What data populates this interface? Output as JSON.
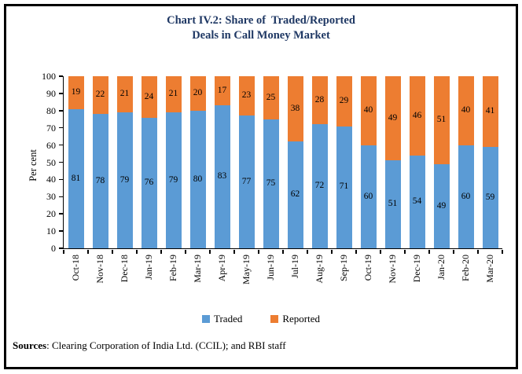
{
  "title": {
    "line1": "Chart IV.2: Share of  Traded/Reported",
    "line2": "Deals in Call Money Market"
  },
  "chart_data": {
    "type": "bar",
    "stacked": true,
    "title": "Chart IV.2: Share of Traded/Reported Deals in Call Money Market",
    "categories": [
      "Oct-18",
      "Nov-18",
      "Dec-18",
      "Jan-19",
      "Feb-19",
      "Mar-19",
      "Apr-19",
      "May-19",
      "Jun-19",
      "Jul-19",
      "Aug-19",
      "Sep-19",
      "Oct-19",
      "Nov-19",
      "Dec-19",
      "Jan-20",
      "Feb-20",
      "Mar-20"
    ],
    "series": [
      {
        "name": "Traded",
        "color": "#5B9BD5",
        "values": [
          81,
          78,
          79,
          76,
          79,
          80,
          83,
          77,
          75,
          62,
          72,
          71,
          60,
          51,
          54,
          49,
          60,
          59
        ]
      },
      {
        "name": "Reported",
        "color": "#ED7D31",
        "values": [
          19,
          22,
          21,
          24,
          21,
          20,
          17,
          23,
          25,
          38,
          28,
          29,
          40,
          49,
          46,
          51,
          40,
          41
        ]
      }
    ],
    "xlabel": "",
    "ylabel": "Per cent",
    "ylim": [
      0,
      100
    ],
    "y_ticks": [
      0,
      10,
      20,
      30,
      40,
      50,
      60,
      70,
      80,
      90,
      100
    ],
    "grid": false,
    "legend_position": "bottom",
    "data_labels": "centered-in-segment"
  },
  "source": {
    "label": "Sources",
    "text": ": Clearing Corporation of India Ltd. (CCIL); and RBI staff"
  },
  "colors": {
    "traded": "#5B9BD5",
    "reported": "#ED7D31",
    "title": "#1F3864",
    "axis": "#000000",
    "frame_border": "#000000"
  }
}
